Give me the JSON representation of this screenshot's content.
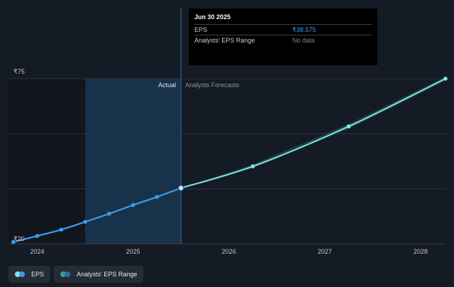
{
  "tooltip": {
    "date": "Jun 30 2025",
    "rows": [
      {
        "label": "EPS",
        "value": "₹38.575"
      },
      {
        "label": "Analysts' EPS Range",
        "value": "No data"
      }
    ]
  },
  "regions": {
    "actual_label": "Actual",
    "forecast_label": "Analysts Forecasts"
  },
  "legend": [
    {
      "label": "EPS",
      "color_a": "#7de8e8",
      "color_b": "#3d9bf0"
    },
    {
      "label": "Analysts' EPS Range",
      "color_a": "#3b9a9a",
      "color_b": "#2c6ea3"
    }
  ],
  "colors": {
    "background": "#151b24",
    "actual_line": "#3d9bf0",
    "forecast_line": "#7de8e8",
    "highlight": "#17324a",
    "range_band": "#2a5d5c"
  },
  "chart_data": {
    "type": "line",
    "title": "",
    "xlabel": "",
    "ylabel": "",
    "currency": "₹",
    "y_tick_labels": [
      "₹75",
      "₹20"
    ],
    "ylim": [
      20,
      75
    ],
    "xlim": [
      2023.7,
      2028.26
    ],
    "x_tick_labels": [
      "2024",
      "2025",
      "2026",
      "2027",
      "2028"
    ],
    "x_ticks": [
      2024,
      2025,
      2026,
      2027,
      2028
    ],
    "highlight_range": [
      2024.5,
      2025.5
    ],
    "divider_x": 2025.5,
    "series": [
      {
        "name": "EPS (Actual)",
        "x": [
          2023.75,
          2024.0,
          2024.25,
          2024.5,
          2024.75,
          2025.0,
          2025.25,
          2025.5
        ],
        "y": [
          20.6,
          22.6,
          24.7,
          27.3,
          30.0,
          32.9,
          35.6,
          38.575
        ]
      },
      {
        "name": "EPS (Analysts Forecasts)",
        "x": [
          2025.5,
          2026.25,
          2027.25,
          2028.26
        ],
        "y": [
          38.575,
          45.8,
          59.1,
          75.0
        ]
      },
      {
        "name": "Analysts' EPS Range",
        "x": [
          2025.5,
          2026.25,
          2027.25,
          2028.26
        ],
        "low": [
          38.575,
          45.2,
          58.3,
          74.3
        ],
        "high": [
          38.575,
          46.4,
          59.9,
          75.6
        ]
      }
    ]
  }
}
